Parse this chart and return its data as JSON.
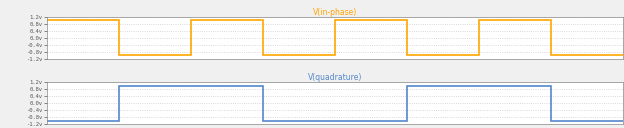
{
  "title_top": "V(in-phase)",
  "title_bot": "V(quadrature)",
  "ylim": [
    -1.2,
    1.2
  ],
  "yticks": [
    -1.2,
    -0.8,
    -0.4,
    0.0,
    0.4,
    0.8,
    1.2
  ],
  "ytick_labels": [
    "-1.2v",
    "-0.8v",
    "-0.4v",
    "0.0v",
    "0.4v",
    "0.8v",
    "1.2v"
  ],
  "color_top": "#FFA500",
  "color_bot": "#5588CC",
  "bg_color": "#f0f0f0",
  "plot_bg": "#ffffff",
  "grid_color": "#cccccc",
  "title_color": "#FFA500",
  "title_bot_color": "#5588CC",
  "text_color": "#555555",
  "spine_color": "#888888",
  "top_signal_x": [
    0,
    0.125,
    0.125,
    0.25,
    0.25,
    0.375,
    0.375,
    0.5,
    0.5,
    0.625,
    0.625,
    0.75,
    0.75,
    0.875,
    0.875,
    1.0
  ],
  "top_signal_y": [
    1,
    1,
    -1,
    -1,
    1,
    1,
    -1,
    -1,
    1,
    1,
    -1,
    -1,
    1,
    1,
    -1,
    -1
  ],
  "bot_signal_x": [
    0,
    0.125,
    0.125,
    0.375,
    0.375,
    0.625,
    0.625,
    0.875,
    0.875,
    1.0
  ],
  "bot_signal_y": [
    -1,
    -1,
    1,
    1,
    -1,
    -1,
    1,
    1,
    -1,
    -1
  ],
  "figsize": [
    6.24,
    1.28
  ],
  "dpi": 100,
  "linewidth": 1.2,
  "title_fontsize": 5.5,
  "tick_fontsize": 4.0
}
